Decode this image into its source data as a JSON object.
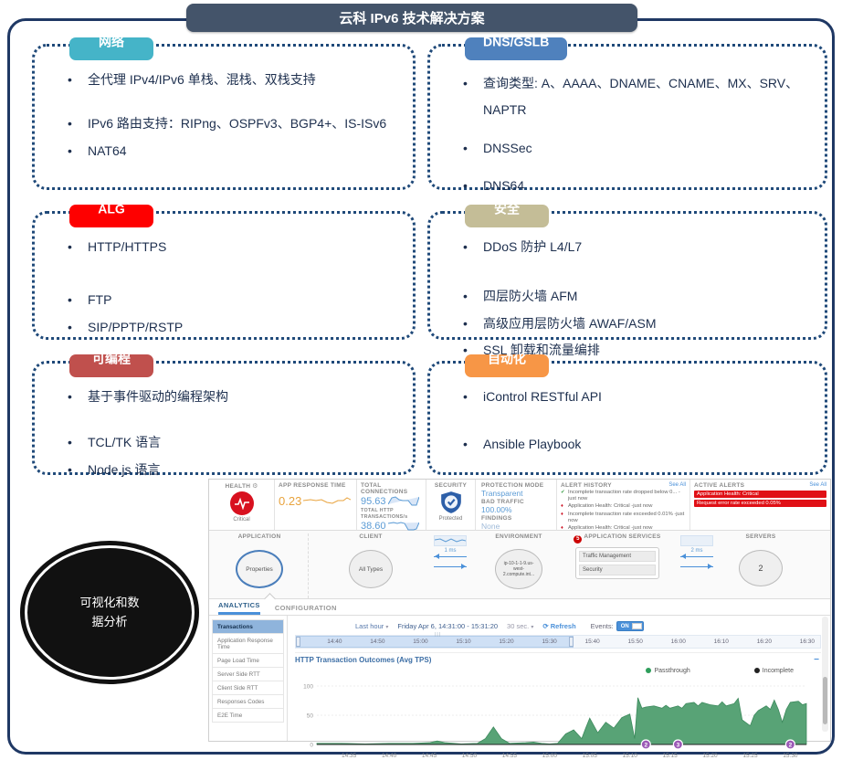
{
  "title": "云科 IPv6 技术解决方案",
  "boxes": [
    {
      "tag": "网络",
      "color": "#45b4c8",
      "items": [
        "全代理 IPv4/IPv6 单栈、混栈、双栈支持",
        "IPv6 路由支持：RIPng、OSPFv3、BGP4+、IS-ISv6",
        "NAT64"
      ]
    },
    {
      "tag": "DNS/GSLB",
      "color": "#4f81bd",
      "items": [
        "查询类型: A、AAAA、DNAME、CNAME、MX、SRV、NAPTR",
        "DNSSec",
        "DNS64"
      ]
    },
    {
      "tag": "ALG",
      "color": "#fe0000",
      "items": [
        "HTTP/HTTPS",
        "FTP",
        "SIP/PPTP/RSTP"
      ]
    },
    {
      "tag": "安全",
      "color": "#c4bd97",
      "items": [
        "DDoS 防护 L4/L7",
        "四层防火墙 AFM",
        "高级应用层防火墙 AWAF/ASM",
        "SSL 卸载和流量编排"
      ]
    },
    {
      "tag": "可编程",
      "color": "#c0504d",
      "items": [
        "基于事件驱动的编程架构",
        "TCL/TK 语言",
        "Node.js 语言"
      ]
    },
    {
      "tag": "自动化",
      "color": "#f79646",
      "items": [
        "iControl RESTful API",
        "Ansible Playbook"
      ]
    }
  ],
  "ellipse": {
    "lines": [
      "可视化和数",
      "据分析"
    ]
  },
  "dashboard": {
    "health": {
      "label": "HEALTH",
      "status": "Critical"
    },
    "metrics": {
      "app_response_time": {
        "label": "APP RESPONSE TIME",
        "value": "0.23"
      },
      "total_connections": {
        "label": "TOTAL CONNECTIONS",
        "value": "95.63"
      },
      "total_http": {
        "label": "TOTAL HTTP TRANSACTIONS/s",
        "value": "38.60"
      }
    },
    "security": {
      "label": "SECURITY",
      "status": "Protected"
    },
    "protection": {
      "mode_label": "PROTECTION MODE",
      "mode": "Transparent",
      "bad_label": "BAD TRAFFIC",
      "bad": "100.00%",
      "findings_label": "FINDINGS",
      "findings": "None"
    },
    "alert_history": {
      "label": "ALERT HISTORY",
      "see_all": "See All",
      "items": [
        {
          "level": "ok",
          "text": "Incomplete transaction rate dropped below 0... -just now"
        },
        {
          "level": "critical",
          "text": "Application Health: Critical -just now"
        },
        {
          "level": "critical",
          "text": "Incomplete transaction rate exceeded 0.01% -just now"
        },
        {
          "level": "critical",
          "text": "Application Health: Critical -just now"
        },
        {
          "level": "critical",
          "text": "Application Health: Critical -just now"
        }
      ]
    },
    "active_alerts": {
      "label": "ACTIVE ALERTS",
      "see_all": "See All",
      "items": [
        "Application Health: Critical",
        "Request error rate exceeded 0.05%"
      ]
    },
    "topology": {
      "application": {
        "label": "APPLICATION",
        "node": "Properties"
      },
      "client": {
        "label": "CLIENT",
        "node": "All Types"
      },
      "latency1": "1 ms",
      "environment": {
        "label": "ENVIRONMENT",
        "node": "ip-10-1-1-9.us-west-2.compute.int..."
      },
      "services": {
        "label": "APPLICATION SERVICES",
        "rows": [
          "Traffic Management",
          "Security"
        ]
      },
      "latency2": "2 ms",
      "servers": {
        "label": "SERVERS",
        "node": "2"
      }
    },
    "tabs": [
      {
        "label": "ANALYTICS"
      },
      {
        "label": "CONFIGURATION"
      }
    ],
    "sidebar": [
      "Transactions",
      "Application Response Time",
      "Page Load Time",
      "Server Side RTT",
      "Client Side RTT",
      "Responses Codes",
      "E2E Time"
    ],
    "timebar": {
      "range_select": "Last hour",
      "date_range": "Friday Apr 6, 14:31:00 - 15:31:20",
      "interval": "30 sec.",
      "refresh": "Refresh",
      "events_label": "Events:",
      "events_state": "ON",
      "ticks": [
        "14:40",
        "14:50",
        "15:00",
        "15:10",
        "15:20",
        "15:30",
        "15:40",
        "15:50",
        "16:00",
        "16:10",
        "16:20",
        "16:30"
      ]
    }
  },
  "chart_data": {
    "type": "area",
    "title": "HTTP Transaction Outcomes (Avg TPS)",
    "ylabel": "Avg TPS",
    "ylim": [
      0,
      100
    ],
    "yticks": [
      0,
      50,
      100
    ],
    "x_start_label": "14:31",
    "x_total_minutes": 61,
    "xticks": [
      {
        "minute": 4,
        "label": "14:35"
      },
      {
        "minute": 9,
        "label": "14:40"
      },
      {
        "minute": 14,
        "label": "14:45"
      },
      {
        "minute": 19,
        "label": "14:50"
      },
      {
        "minute": 24,
        "label": "14:55"
      },
      {
        "minute": 29,
        "label": "15:00"
      },
      {
        "minute": 34,
        "label": "15:05"
      },
      {
        "minute": 39,
        "label": "15:10"
      },
      {
        "minute": 44,
        "label": "15:15"
      },
      {
        "minute": 49,
        "label": "15:20"
      },
      {
        "minute": 54,
        "label": "15:25"
      },
      {
        "minute": 59,
        "label": "15:30"
      }
    ],
    "legend": [
      {
        "name": "Passthrough",
        "color": "#2e9e5b"
      },
      {
        "name": "Incomplete",
        "color": "#222222"
      }
    ],
    "series": [
      {
        "name": "Passthrough",
        "color": "#4f9e6f",
        "points": [
          [
            0,
            2
          ],
          [
            3,
            2
          ],
          [
            6,
            1
          ],
          [
            9,
            2
          ],
          [
            12,
            2
          ],
          [
            14,
            3
          ],
          [
            15,
            6
          ],
          [
            16,
            3
          ],
          [
            18,
            1
          ],
          [
            20,
            2
          ],
          [
            21,
            10
          ],
          [
            22,
            30
          ],
          [
            23,
            10
          ],
          [
            24,
            2
          ],
          [
            26,
            3
          ],
          [
            27,
            4
          ],
          [
            28,
            2
          ],
          [
            29,
            1
          ],
          [
            30,
            2
          ],
          [
            31,
            18
          ],
          [
            32,
            25
          ],
          [
            33,
            10
          ],
          [
            33.5,
            28
          ],
          [
            34,
            45
          ],
          [
            35,
            20
          ],
          [
            36,
            38
          ],
          [
            37,
            28
          ],
          [
            38,
            46
          ],
          [
            39,
            52
          ],
          [
            39.6,
            10
          ],
          [
            40,
            80
          ],
          [
            40.5,
            62
          ],
          [
            41,
            64
          ],
          [
            42,
            66
          ],
          [
            43,
            62
          ],
          [
            43.5,
            67
          ],
          [
            44,
            62
          ],
          [
            45,
            66
          ],
          [
            45.5,
            62
          ],
          [
            46,
            70
          ],
          [
            47,
            72
          ],
          [
            47.5,
            66
          ],
          [
            48,
            72
          ],
          [
            49,
            68
          ],
          [
            50,
            66
          ],
          [
            50.5,
            73
          ],
          [
            51,
            66
          ],
          [
            52,
            70
          ],
          [
            52.5,
            79
          ],
          [
            53,
            42
          ],
          [
            54,
            32
          ],
          [
            54.5,
            50
          ],
          [
            55,
            58
          ],
          [
            56,
            66
          ],
          [
            56.5,
            60
          ],
          [
            57,
            76
          ],
          [
            57.5,
            60
          ],
          [
            58,
            38
          ],
          [
            58.5,
            60
          ],
          [
            59,
            72
          ],
          [
            60,
            74
          ],
          [
            60.5,
            68
          ],
          [
            61,
            70
          ]
        ]
      },
      {
        "name": "Incomplete",
        "color": "#222222",
        "points": [
          [
            0,
            0
          ],
          [
            61,
            0
          ]
        ]
      }
    ],
    "event_markers": [
      {
        "minute": 41,
        "time": "15:12",
        "label": "2"
      },
      {
        "minute": 45,
        "time": "15:16",
        "label": "3"
      },
      {
        "minute": 59,
        "time": "15:30",
        "label": "2"
      }
    ]
  }
}
